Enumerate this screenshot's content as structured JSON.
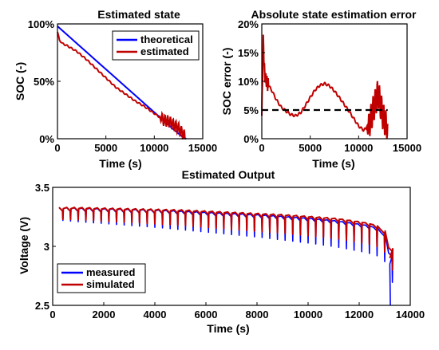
{
  "chart_data": [
    {
      "id": "soc",
      "type": "line",
      "title": "Estimated state",
      "xlabel": "Time (s)",
      "ylabel": "SOC (-)",
      "xlim": [
        0,
        15000
      ],
      "ylim": [
        0,
        1
      ],
      "x_ticks": [
        {
          "v": 0,
          "label": "0"
        },
        {
          "v": 5000,
          "label": "5000"
        },
        {
          "v": 10000,
          "label": "10000"
        },
        {
          "v": 15000,
          "label": "15000"
        }
      ],
      "y_ticks": [
        {
          "v": 0,
          "label": "0%"
        },
        {
          "v": 0.5,
          "label": "50%"
        },
        {
          "v": 1,
          "label": "100%"
        }
      ],
      "legend_position": "top-right",
      "series": [
        {
          "name": "theoretical",
          "color": "#0000ff",
          "x": [
            0,
            1000,
            2000,
            3000,
            4000,
            5000,
            6000,
            7000,
            8000,
            9000,
            10000,
            11000,
            12000,
            13000,
            13300
          ],
          "y": [
            0.98,
            0.905,
            0.83,
            0.755,
            0.68,
            0.605,
            0.53,
            0.455,
            0.38,
            0.305,
            0.23,
            0.155,
            0.08,
            0.01,
            0.0
          ]
        },
        {
          "name": "estimated",
          "color": "#c00000",
          "x": [
            0,
            200,
            500,
            1000,
            2000,
            3000,
            4000,
            5000,
            6000,
            7000,
            8000,
            9000,
            10000,
            10500,
            11000,
            11500,
            12000,
            12500,
            13000,
            13300
          ],
          "y": [
            0.93,
            0.86,
            0.83,
            0.81,
            0.76,
            0.69,
            0.61,
            0.53,
            0.45,
            0.39,
            0.33,
            0.28,
            0.22,
            0.19,
            0.16,
            0.15,
            0.12,
            0.09,
            0.04,
            0.0
          ]
        }
      ]
    },
    {
      "id": "err",
      "type": "line",
      "title": "Absolute state estimation error",
      "xlabel": "Time (s)",
      "ylabel": "SOC error (-)",
      "xlim": [
        0,
        15000
      ],
      "ylim": [
        0,
        0.2
      ],
      "x_ticks": [
        {
          "v": 0,
          "label": "0"
        },
        {
          "v": 5000,
          "label": "5000"
        },
        {
          "v": 10000,
          "label": "10000"
        },
        {
          "v": 15000,
          "label": "15000"
        }
      ],
      "y_ticks": [
        {
          "v": 0,
          "label": "0%"
        },
        {
          "v": 0.05,
          "label": "5%"
        },
        {
          "v": 0.1,
          "label": "10%"
        },
        {
          "v": 0.15,
          "label": "15%"
        },
        {
          "v": 0.2,
          "label": "20%"
        }
      ],
      "threshold": {
        "y": 0.05,
        "x_start": 0,
        "x_end": 13000,
        "style": "dashed",
        "color": "#000000"
      },
      "series": [
        {
          "name": "",
          "color": "#c00000",
          "x": [
            0,
            150,
            300,
            600,
            1000,
            1500,
            2000,
            2500,
            3000,
            3500,
            4000,
            4500,
            5000,
            5500,
            6000,
            6500,
            7000,
            7500,
            8000,
            8500,
            9000,
            9500,
            10000,
            10500,
            11000,
            11500,
            12000,
            12500,
            13000
          ],
          "y": [
            0.04,
            0.17,
            0.11,
            0.095,
            0.085,
            0.068,
            0.055,
            0.048,
            0.042,
            0.04,
            0.045,
            0.058,
            0.072,
            0.085,
            0.093,
            0.096,
            0.092,
            0.083,
            0.072,
            0.06,
            0.048,
            0.035,
            0.022,
            0.015,
            0.02,
            0.05,
            0.08,
            0.04,
            0.015
          ]
        }
      ]
    },
    {
      "id": "out",
      "type": "line",
      "title": "Estimated Output",
      "xlabel": "Time (s)",
      "ylabel": "Voltage (V)",
      "xlim": [
        0,
        14000
      ],
      "ylim": [
        2.5,
        3.5
      ],
      "x_ticks": [
        {
          "v": 0,
          "label": "0"
        },
        {
          "v": 2000,
          "label": "2000"
        },
        {
          "v": 4000,
          "label": "4000"
        },
        {
          "v": 6000,
          "label": "6000"
        },
        {
          "v": 8000,
          "label": "8000"
        },
        {
          "v": 10000,
          "label": "10000"
        },
        {
          "v": 12000,
          "label": "12000"
        },
        {
          "v": 14000,
          "label": "14000"
        }
      ],
      "y_ticks": [
        {
          "v": 2.5,
          "label": "2.5"
        },
        {
          "v": 3,
          "label": "3"
        },
        {
          "v": 3.5,
          "label": "3.5"
        }
      ],
      "legend_position": "bottom-left",
      "pulse_period_s": 300,
      "series": [
        {
          "name": "measured",
          "color": "#0000ff",
          "x": [
            250,
            1000,
            2000,
            3000,
            4000,
            5000,
            6000,
            7000,
            8000,
            9000,
            10000,
            11000,
            12000,
            12500,
            12800,
            13000,
            13100,
            13200
          ],
          "y": [
            3.3,
            3.295,
            3.29,
            3.285,
            3.28,
            3.27,
            3.26,
            3.25,
            3.24,
            3.225,
            3.21,
            3.19,
            3.16,
            3.14,
            3.1,
            3.05,
            2.98,
            2.85
          ]
        },
        {
          "name": "simulated",
          "color": "#c00000",
          "x": [
            250,
            1000,
            2000,
            3000,
            4000,
            5000,
            6000,
            7000,
            8000,
            9000,
            10000,
            11000,
            12000,
            12500,
            12800,
            13000,
            13100,
            13200
          ],
          "y": [
            3.3,
            3.3,
            3.295,
            3.29,
            3.285,
            3.28,
            3.27,
            3.26,
            3.25,
            3.24,
            3.225,
            3.21,
            3.18,
            3.16,
            3.12,
            3.08,
            3.02,
            2.9
          ]
        }
      ]
    }
  ]
}
